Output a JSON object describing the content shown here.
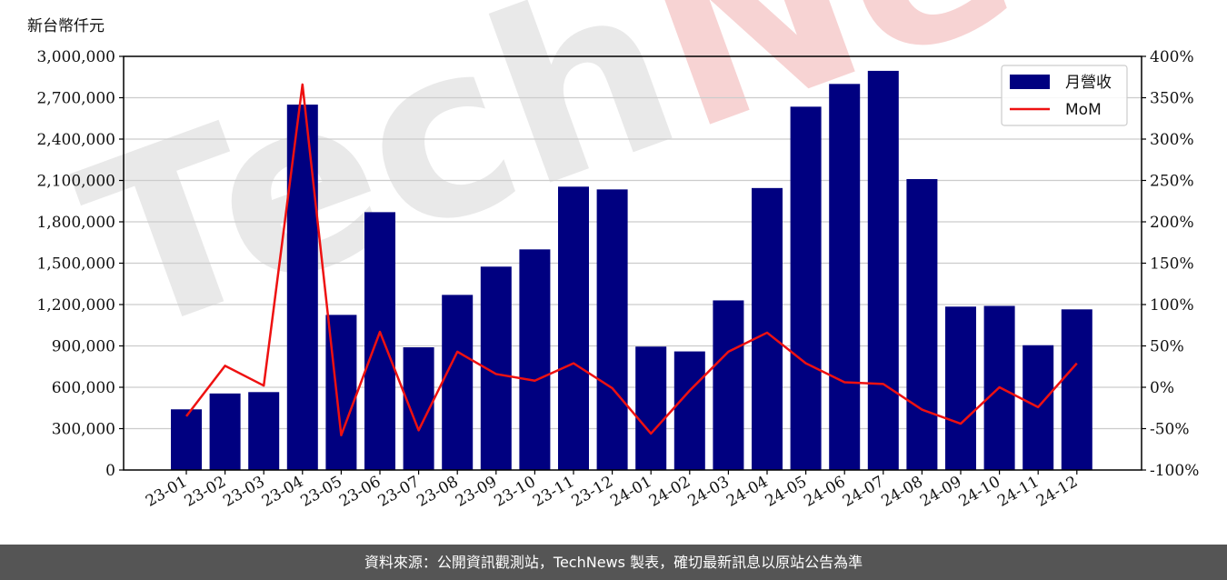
{
  "unit_label": "新台幣仟元",
  "footer_text": "資料來源：公開資訊觀測站，TechNews 製表，確切最新訊息以原站公告為準",
  "watermark": {
    "dark": "Tech",
    "accent": "News"
  },
  "colors": {
    "bar": "#000080",
    "line": "#ee1111",
    "footer_bg": "#555555"
  },
  "chart_data": {
    "type": "bar",
    "categories": [
      "23-01",
      "23-02",
      "23-03",
      "23-04",
      "23-05",
      "23-06",
      "23-07",
      "23-08",
      "23-09",
      "23-10",
      "23-11",
      "23-12",
      "24-01",
      "24-02",
      "24-03",
      "24-04",
      "24-05",
      "24-06",
      "24-07",
      "24-08",
      "24-09",
      "24-10",
      "24-11",
      "24-12"
    ],
    "series": [
      {
        "name": "月營收",
        "type": "bar",
        "axis": "left",
        "values": [
          440000,
          555000,
          565000,
          2650000,
          1125000,
          1870000,
          890000,
          1270000,
          1475000,
          1600000,
          2055000,
          2035000,
          895000,
          860000,
          1230000,
          2045000,
          2635000,
          2800000,
          2895000,
          2110000,
          1185000,
          1190000,
          905000,
          1165000
        ]
      },
      {
        "name": "MoM",
        "type": "line",
        "axis": "right",
        "values": [
          -35,
          26,
          2,
          366,
          -58,
          67,
          -52,
          43,
          16,
          8,
          29,
          -1,
          -56,
          -4,
          43,
          66,
          29,
          6,
          4,
          -27,
          -44,
          0,
          -24,
          29
        ]
      }
    ],
    "y_left": {
      "ylim": [
        0,
        3000000
      ],
      "ticks": [
        "0",
        "300,000",
        "600,000",
        "900,000",
        "1,200,000",
        "1,500,000",
        "1,800,000",
        "2,100,000",
        "2,400,000",
        "2,700,000",
        "3,000,000"
      ]
    },
    "y_right": {
      "ylim": [
        -100,
        400
      ],
      "ticks": [
        "-100%",
        "-50%",
        "0%",
        "50%",
        "100%",
        "150%",
        "200%",
        "250%",
        "300%",
        "350%",
        "400%"
      ]
    },
    "grid": true,
    "legend_position": "top-right"
  }
}
